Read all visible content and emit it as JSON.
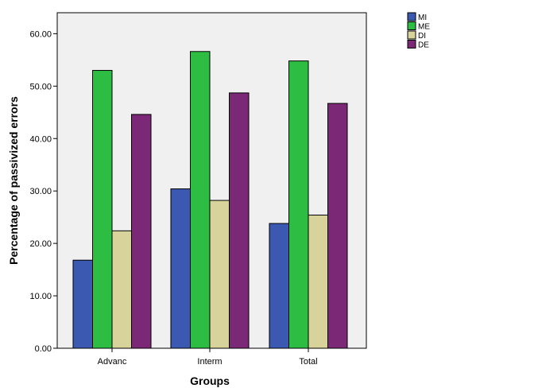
{
  "chart_data": {
    "type": "bar",
    "title": "",
    "xlabel": "Groups",
    "ylabel": "Percentage of passivized errors",
    "categories": [
      "Advanc",
      "Interm",
      "Total"
    ],
    "ylim": [
      0,
      64
    ],
    "yticks": [
      "0.00",
      "10.00",
      "20.00",
      "30.00",
      "40.00",
      "50.00",
      "60.00"
    ],
    "ytick_values": [
      0,
      10,
      20,
      30,
      40,
      50,
      60
    ],
    "grid": false,
    "legend_position": "top-right",
    "series": [
      {
        "name": "MI",
        "color": "#3c59b1",
        "values": [
          16.8,
          30.4,
          23.8
        ]
      },
      {
        "name": "ME",
        "color": "#2ebd43",
        "values": [
          53.0,
          56.6,
          54.8
        ]
      },
      {
        "name": "DI",
        "color": "#d8d29b",
        "values": [
          22.4,
          28.2,
          25.4
        ]
      },
      {
        "name": "DE",
        "color": "#7b2876",
        "values": [
          44.6,
          48.7,
          46.7
        ]
      }
    ],
    "plot_background": "#f0f0f0"
  }
}
